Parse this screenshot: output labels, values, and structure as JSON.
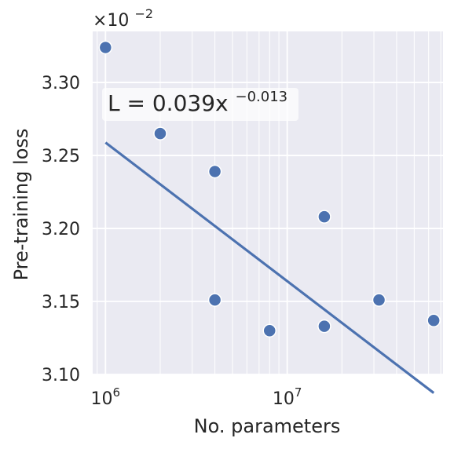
{
  "chart_data": {
    "type": "scatter",
    "xscale": "log",
    "xlabel": "No. parameters",
    "ylabel": "Pre-training loss",
    "y_scale_factor_label": {
      "base": "×10",
      "exponent": "−2"
    },
    "xlim": [
      850000,
      72000000
    ],
    "ylim": [
      3.1,
      3.335
    ],
    "x_major_ticks": [
      {
        "value": 1000000,
        "base": "10",
        "exponent": "6"
      },
      {
        "value": 10000000,
        "base": "10",
        "exponent": "7"
      }
    ],
    "y_ticks": [
      {
        "value": 3.1,
        "label": "3.10"
      },
      {
        "value": 3.15,
        "label": "3.15"
      },
      {
        "value": 3.2,
        "label": "3.20"
      },
      {
        "value": 3.25,
        "label": "3.25"
      },
      {
        "value": 3.3,
        "label": "3.30"
      }
    ],
    "grid": true,
    "points": [
      {
        "x": 1000000,
        "y": 3.324
      },
      {
        "x": 2000000,
        "y": 3.265
      },
      {
        "x": 4000000,
        "y": 3.239
      },
      {
        "x": 4000000,
        "y": 3.151
      },
      {
        "x": 8000000,
        "y": 3.13
      },
      {
        "x": 16000000,
        "y": 3.208
      },
      {
        "x": 16000000,
        "y": 3.133
      },
      {
        "x": 32000000,
        "y": 3.151
      },
      {
        "x": 64000000,
        "y": 3.137
      }
    ],
    "fit": {
      "coefficient": 0.039,
      "exponent": -0.013,
      "x_range": [
        1000000,
        64000000
      ],
      "label_main": "L = 0.039x",
      "label_exponent": "−0.013"
    },
    "colors": {
      "background": "#eaeaf2",
      "grid": "#ffffff",
      "point": "#4c72b0",
      "fit_line": "#4c72b0",
      "text": "#262626"
    }
  }
}
